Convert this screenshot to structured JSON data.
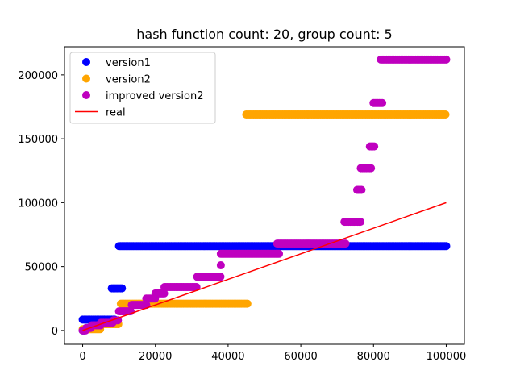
{
  "chart_data": {
    "type": "scatter",
    "title": "hash function count: 20, group count: 5",
    "xlabel": "",
    "ylabel": "",
    "xlim": [
      -5000,
      105000
    ],
    "ylim": [
      -10800,
      222000
    ],
    "xticks": [
      0,
      20000,
      40000,
      60000,
      80000,
      100000
    ],
    "yticks": [
      0,
      50000,
      100000,
      150000,
      200000
    ],
    "xtick_labels": [
      "0",
      "20000",
      "40000",
      "60000",
      "80000",
      "100000"
    ],
    "ytick_labels": [
      "0",
      "50000",
      "100000",
      "150000",
      "200000"
    ],
    "legend_position": "upper-left",
    "series": [
      {
        "name": "version1",
        "kind": "scatter",
        "color": "#0000ff",
        "segments": [
          [
            0,
            500,
            0
          ],
          [
            0,
            9000,
            8500
          ],
          [
            8000,
            10800,
            33000
          ],
          [
            10000,
            100000,
            66000
          ]
        ]
      },
      {
        "name": "version2",
        "kind": "scatter",
        "color": "#ffa500",
        "segments": [
          [
            0,
            5000,
            1000
          ],
          [
            5000,
            10000,
            5000
          ],
          [
            10500,
            45500,
            21000
          ],
          [
            45000,
            100000,
            169000
          ]
        ]
      },
      {
        "name": "improved version2",
        "kind": "scatter",
        "color": "#bf00bf",
        "segments": [
          [
            0,
            1000,
            0
          ],
          [
            1000,
            2500,
            2000
          ],
          [
            2500,
            5000,
            4000
          ],
          [
            5000,
            8500,
            6000
          ],
          [
            8500,
            10000,
            8000
          ],
          [
            10000,
            13500,
            15000
          ],
          [
            13500,
            17500,
            20000
          ],
          [
            17500,
            20000,
            25000
          ],
          [
            20000,
            22500,
            29000
          ],
          [
            22500,
            31500,
            34000
          ],
          [
            31500,
            38000,
            42000
          ],
          [
            38000,
            38300,
            51000
          ],
          [
            38000,
            54000,
            60000
          ],
          [
            53500,
            72500,
            68000
          ],
          [
            72000,
            76500,
            85000
          ],
          [
            75500,
            77000,
            110000
          ],
          [
            76500,
            79500,
            127000
          ],
          [
            79000,
            80500,
            144000
          ],
          [
            80000,
            82500,
            178000
          ],
          [
            82000,
            100000,
            212000
          ]
        ]
      },
      {
        "name": "real",
        "kind": "line",
        "color": "#ff0000",
        "points": [
          [
            0,
            0
          ],
          [
            100000,
            100000
          ]
        ]
      }
    ]
  }
}
